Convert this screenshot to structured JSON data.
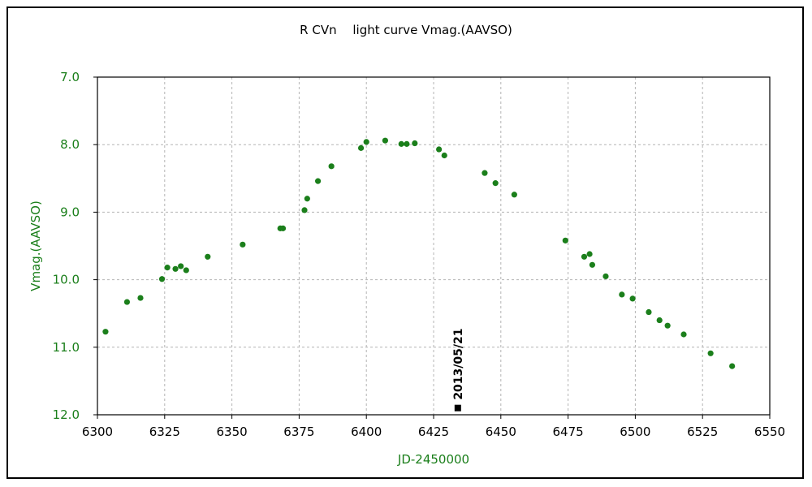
{
  "chart_data": {
    "type": "scatter",
    "title": "R CVn　 light curve  Vmag.(AAVSO)",
    "xlabel": "JD-2450000",
    "ylabel": "Vmag.(AAVSO)",
    "xlim": [
      6300,
      6550
    ],
    "ylim": [
      7.0,
      12.0
    ],
    "y_inverted": true,
    "x_ticks": [
      "6300",
      "6325",
      "6350",
      "6375",
      "6400",
      "6425",
      "6450",
      "6475",
      "6500",
      "6525",
      "6550"
    ],
    "y_ticks": [
      "7.0",
      "8.0",
      "9.0",
      "10.0",
      "11.0",
      "12.0"
    ],
    "grid": true,
    "series": [
      {
        "color": "#1b7f1b",
        "marker": "circle",
        "x": [
          6303,
          6311,
          6316,
          6324,
          6326,
          6329,
          6331,
          6333,
          6341,
          6354,
          6368,
          6369,
          6377,
          6378,
          6382,
          6387,
          6398,
          6400,
          6407,
          6413,
          6415,
          6418,
          6427,
          6429,
          6444,
          6448,
          6455,
          6474,
          6481,
          6483,
          6484,
          6489,
          6495,
          6499,
          6505,
          6509,
          6512,
          6518,
          6528,
          6536
        ],
        "y": [
          10.77,
          10.33,
          10.27,
          9.99,
          9.82,
          9.84,
          9.8,
          9.86,
          9.66,
          9.48,
          9.24,
          9.24,
          8.97,
          8.8,
          8.54,
          8.32,
          8.05,
          7.96,
          7.94,
          7.99,
          7.99,
          7.98,
          8.07,
          8.16,
          8.42,
          8.57,
          8.74,
          9.42,
          9.66,
          9.62,
          9.78,
          9.95,
          10.22,
          10.28,
          10.48,
          10.6,
          10.68,
          10.81,
          11.09,
          11.28
        ]
      }
    ],
    "annotations": [
      {
        "text": "2013/05/21",
        "x": 6434,
        "y": 11.9,
        "marker": "square",
        "color": "#000000"
      }
    ]
  }
}
